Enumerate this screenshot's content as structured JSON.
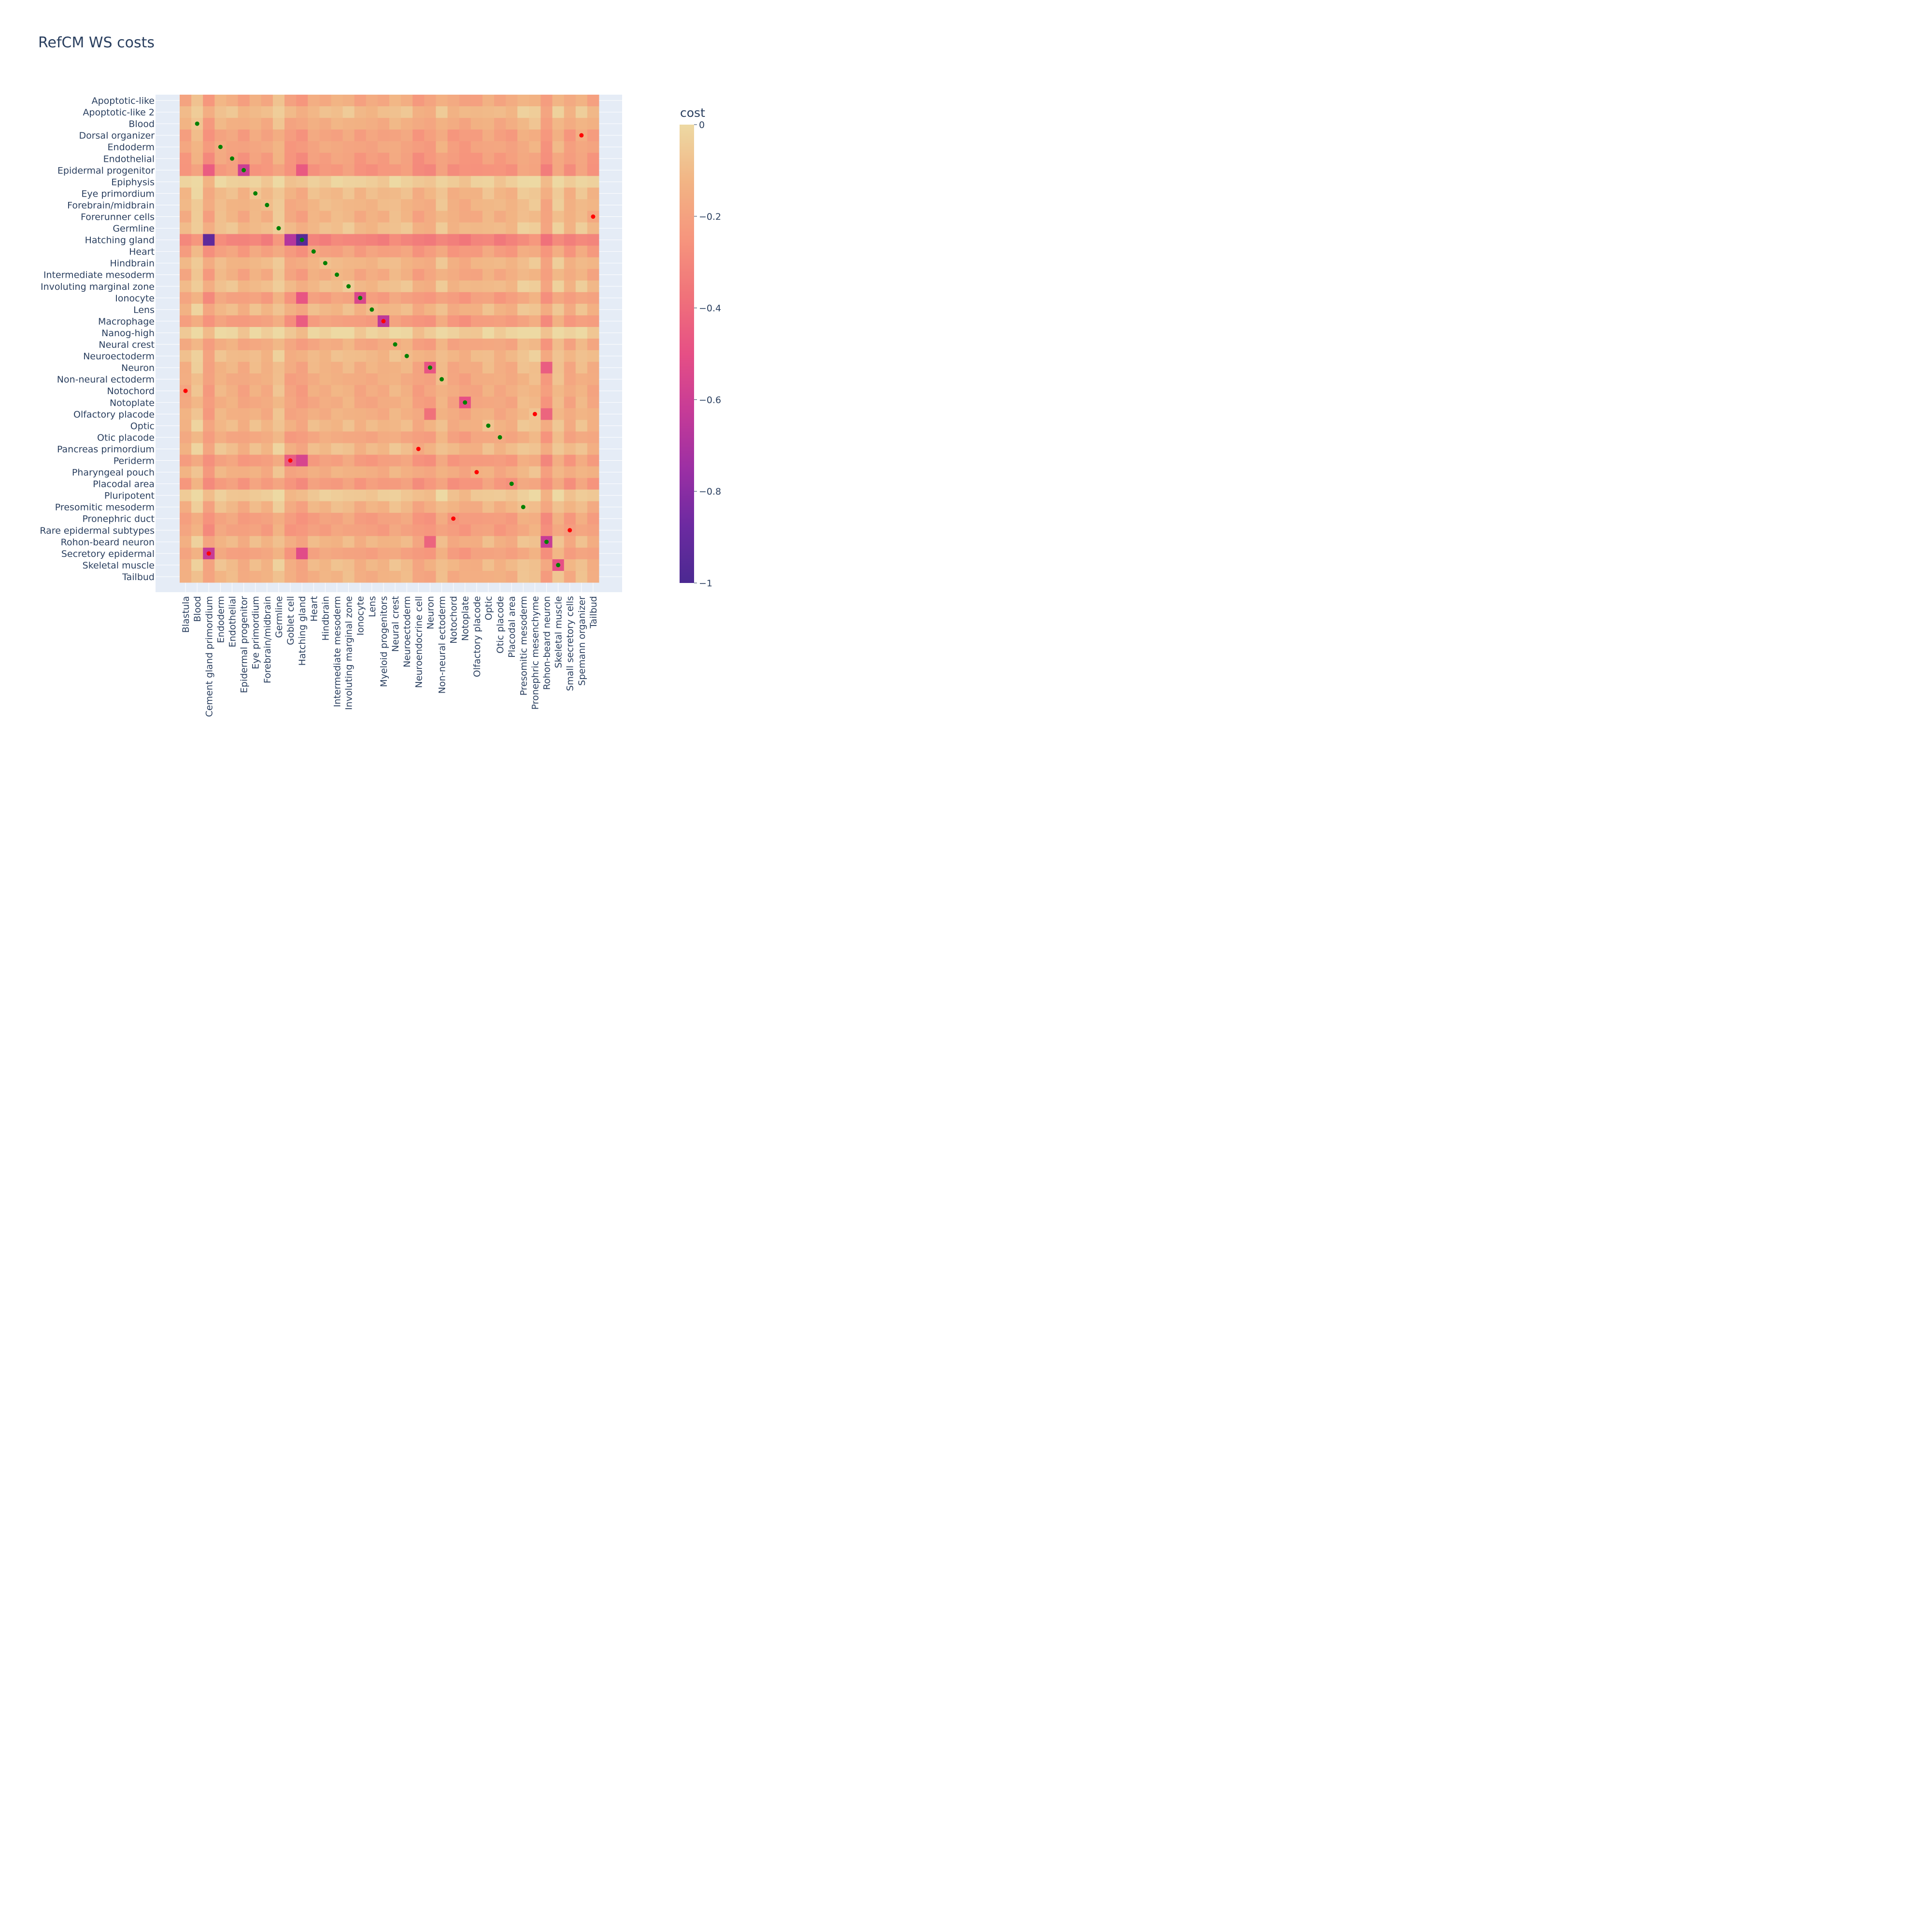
{
  "chart_data": {
    "type": "heatmap",
    "title": "RefCM WS costs",
    "colorbar": {
      "title": "cost",
      "range": [
        -1,
        0
      ],
      "ticks": [
        "0",
        "−0.2",
        "−0.4",
        "−0.6",
        "−0.8",
        "−1"
      ],
      "tick_values": [
        0,
        -0.2,
        -0.4,
        -0.6,
        -0.8,
        -1
      ],
      "colorscale": [
        "#edd9a3",
        "#f2b484",
        "#f6957d",
        "#f0727a",
        "#e64f85",
        "#c63b97",
        "#9c2fa4",
        "#6c2aa1",
        "#4b2991"
      ]
    },
    "grid": true,
    "y_categories": [
      "Apoptotic-like",
      "Apoptotic-like 2",
      "Blood",
      "Dorsal organizer",
      "Endoderm",
      "Endothelial",
      "Epidermal progenitor",
      "Epiphysis",
      "Eye primordium",
      "Forebrain/midbrain",
      "Forerunner cells",
      "Germline",
      "Hatching gland",
      "Heart",
      "Hindbrain",
      "Intermediate mesoderm",
      "Involuting marginal zone",
      "Ionocyte",
      "Lens",
      "Macrophage",
      "Nanog-high",
      "Neural crest",
      "Neuroectoderm",
      "Neuron",
      "Non-neural ectoderm",
      "Notochord",
      "Notoplate",
      "Olfactory placode",
      "Optic",
      "Otic placode",
      "Pancreas primordium",
      "Periderm",
      "Pharyngeal pouch",
      "Placodal area",
      "Pluripotent",
      "Presomitic mesoderm",
      "Pronephric duct",
      "Rare epidermal subtypes",
      "Rohon-beard neuron",
      "Secretory epidermal",
      "Skeletal muscle",
      "Tailbud"
    ],
    "x_categories": [
      "Blastula",
      "Blood",
      "Cement gland primordium",
      "Endoderm",
      "Endothelial",
      "Epidermal progenitor",
      "Eye primordium",
      "Forebrain/midbrain",
      "Germline",
      "Goblet cell",
      "Hatching gland",
      "Heart",
      "Hindbrain",
      "Intermediate mesoderm",
      "Involuting marginal zone",
      "Ionocyte",
      "Lens",
      "Myeloid progenitors",
      "Neural crest",
      "Neuroectoderm",
      "Neuroendocrine cell",
      "Neuron",
      "Non-neural ectoderm",
      "Notochord",
      "Notoplate",
      "Olfactory placode",
      "Optic",
      "Otic placode",
      "Placodal area",
      "Presomitic mesoderm",
      "Pronephric mesenchyme",
      "Rohon-beard neuron",
      "Skeletal muscle",
      "Small secretory cells",
      "Spemann organizer",
      "Tailbud"
    ],
    "row_base": [
      -0.17,
      -0.1,
      -0.15,
      -0.2,
      -0.19,
      -0.22,
      -0.25,
      -0.04,
      -0.11,
      -0.12,
      -0.14,
      -0.1,
      -0.32,
      -0.21,
      -0.12,
      -0.16,
      -0.1,
      -0.21,
      -0.12,
      -0.22,
      -0.03,
      -0.17,
      -0.11,
      -0.14,
      -0.16,
      -0.16,
      -0.17,
      -0.15,
      -0.12,
      -0.18,
      -0.11,
      -0.22,
      -0.15,
      -0.23,
      -0.06,
      -0.13,
      -0.21,
      -0.21,
      -0.13,
      -0.2,
      -0.12,
      -0.14
    ],
    "col_offset": [
      0.0,
      0.08,
      -0.06,
      0.03,
      0.02,
      -0.02,
      0.02,
      0.0,
      0.07,
      -0.03,
      -0.05,
      0.01,
      0.01,
      0.02,
      0.03,
      -0.01,
      0.0,
      0.0,
      0.03,
      0.02,
      -0.04,
      -0.03,
      0.04,
      -0.02,
      -0.03,
      -0.01,
      0.02,
      -0.01,
      -0.01,
      0.05,
      0.06,
      -0.06,
      0.06,
      -0.02,
      0.04,
      -0.01
    ],
    "overrides": [
      {
        "y": "Hatching gland",
        "x": "Cement gland primordium",
        "value": -0.92
      },
      {
        "y": "Hatching gland",
        "x": "Hatching gland",
        "value": -0.95
      },
      {
        "y": "Hatching gland",
        "x": "Goblet cell",
        "value": -0.68
      },
      {
        "y": "Epidermal progenitor",
        "x": "Epidermal progenitor",
        "value": -0.6
      },
      {
        "y": "Epidermal progenitor",
        "x": "Cement gland primordium",
        "value": -0.45
      },
      {
        "y": "Epidermal progenitor",
        "x": "Hatching gland",
        "value": -0.46
      },
      {
        "y": "Macrophage",
        "x": "Myeloid progenitors",
        "value": -0.65
      },
      {
        "y": "Macrophage",
        "x": "Hatching gland",
        "value": -0.45
      },
      {
        "y": "Secretory epidermal",
        "x": "Cement gland primordium",
        "value": -0.62
      },
      {
        "y": "Secretory epidermal",
        "x": "Hatching gland",
        "value": -0.52
      },
      {
        "y": "Periderm",
        "x": "Hatching gland",
        "value": -0.56
      },
      {
        "y": "Periderm",
        "x": "Goblet cell",
        "value": -0.45
      },
      {
        "y": "Rohon-beard neuron",
        "x": "Rohon-beard neuron",
        "value": -0.62
      },
      {
        "y": "Rohon-beard neuron",
        "x": "Neuron",
        "value": -0.42
      },
      {
        "y": "Neuron",
        "x": "Neuron",
        "value": -0.48
      },
      {
        "y": "Neuron",
        "x": "Rohon-beard neuron",
        "value": -0.45
      },
      {
        "y": "Notoplate",
        "x": "Notoplate",
        "value": -0.5
      },
      {
        "y": "Ionocyte",
        "x": "Ionocyte",
        "value": -0.55
      },
      {
        "y": "Ionocyte",
        "x": "Hatching gland",
        "value": -0.48
      },
      {
        "y": "Skeletal muscle",
        "x": "Skeletal muscle",
        "value": -0.5
      },
      {
        "y": "Olfactory placode",
        "x": "Rohon-beard neuron",
        "value": -0.42
      },
      {
        "y": "Olfactory placode",
        "x": "Neuron",
        "value": -0.38
      }
    ],
    "markers": {
      "green": [
        {
          "y": "Blood",
          "x": "Blood"
        },
        {
          "y": "Endoderm",
          "x": "Endoderm"
        },
        {
          "y": "Endothelial",
          "x": "Endothelial"
        },
        {
          "y": "Epidermal progenitor",
          "x": "Epidermal progenitor"
        },
        {
          "y": "Eye primordium",
          "x": "Eye primordium"
        },
        {
          "y": "Forebrain/midbrain",
          "x": "Forebrain/midbrain"
        },
        {
          "y": "Germline",
          "x": "Germline"
        },
        {
          "y": "Hatching gland",
          "x": "Hatching gland"
        },
        {
          "y": "Heart",
          "x": "Heart"
        },
        {
          "y": "Hindbrain",
          "x": "Hindbrain"
        },
        {
          "y": "Intermediate mesoderm",
          "x": "Intermediate mesoderm"
        },
        {
          "y": "Involuting marginal zone",
          "x": "Involuting marginal zone"
        },
        {
          "y": "Ionocyte",
          "x": "Ionocyte"
        },
        {
          "y": "Lens",
          "x": "Lens"
        },
        {
          "y": "Neural crest",
          "x": "Neural crest"
        },
        {
          "y": "Neuroectoderm",
          "x": "Neuroectoderm"
        },
        {
          "y": "Neuron",
          "x": "Neuron"
        },
        {
          "y": "Non-neural ectoderm",
          "x": "Non-neural ectoderm"
        },
        {
          "y": "Notoplate",
          "x": "Notoplate"
        },
        {
          "y": "Optic",
          "x": "Optic"
        },
        {
          "y": "Otic placode",
          "x": "Otic placode"
        },
        {
          "y": "Placodal area",
          "x": "Placodal area"
        },
        {
          "y": "Presomitic mesoderm",
          "x": "Presomitic mesoderm"
        },
        {
          "y": "Rohon-beard neuron",
          "x": "Rohon-beard neuron"
        },
        {
          "y": "Skeletal muscle",
          "x": "Skeletal muscle"
        }
      ],
      "red": [
        {
          "y": "Dorsal organizer",
          "x": "Spemann organizer"
        },
        {
          "y": "Forerunner cells",
          "x": "Tailbud"
        },
        {
          "y": "Macrophage",
          "x": "Myeloid progenitors"
        },
        {
          "y": "Notochord",
          "x": "Blastula"
        },
        {
          "y": "Olfactory placode",
          "x": "Pronephric mesenchyme"
        },
        {
          "y": "Pancreas primordium",
          "x": "Neuroendocrine cell"
        },
        {
          "y": "Periderm",
          "x": "Goblet cell"
        },
        {
          "y": "Pharyngeal pouch",
          "x": "Olfactory placode"
        },
        {
          "y": "Pronephric duct",
          "x": "Notochord"
        },
        {
          "y": "Rare epidermal subtypes",
          "x": "Small secretory cells"
        },
        {
          "y": "Secretory epidermal",
          "x": "Cement gland primordium"
        }
      ]
    },
    "colors": {
      "plot_bg": "#e5ecf6",
      "grid": "#ffffff",
      "green_marker": "#008000",
      "red_marker": "#ff0000",
      "text": "#2a3f5f"
    }
  }
}
